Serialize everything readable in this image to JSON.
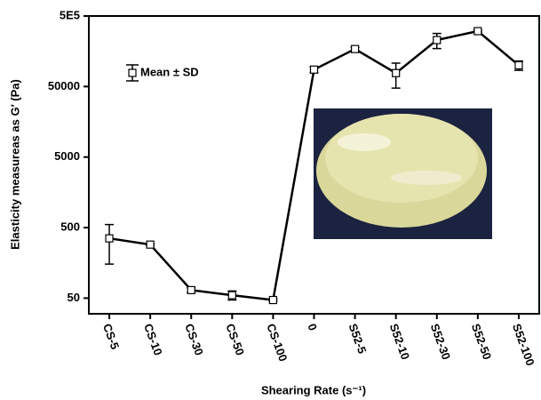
{
  "chart_data": {
    "type": "line",
    "y_label": "Elasticity measureas as G′ (Pa)",
    "x_label": "Shearing Rate (s⁻¹)",
    "legend": "Mean ± SD",
    "categories": [
      "CS-5",
      "CS-10",
      "CS-30",
      "CS-50",
      "CS-100",
      "0",
      "S52-5",
      "S52-10",
      "S52-30",
      "S52-50",
      "S52-100"
    ],
    "values": [
      352,
      287,
      65,
      55,
      47,
      86900,
      170000,
      77500,
      228000,
      305000,
      100000
    ],
    "errors": [
      200,
      10,
      5,
      8,
      2,
      8000,
      10000,
      30000,
      55000,
      10000,
      15000
    ],
    "color": "#000000",
    "log_y": true,
    "ylim": [
      30,
      500000
    ],
    "yticks": [
      {
        "value": 500000,
        "label": "5E5"
      },
      50000,
      5000,
      500,
      50
    ]
  }
}
